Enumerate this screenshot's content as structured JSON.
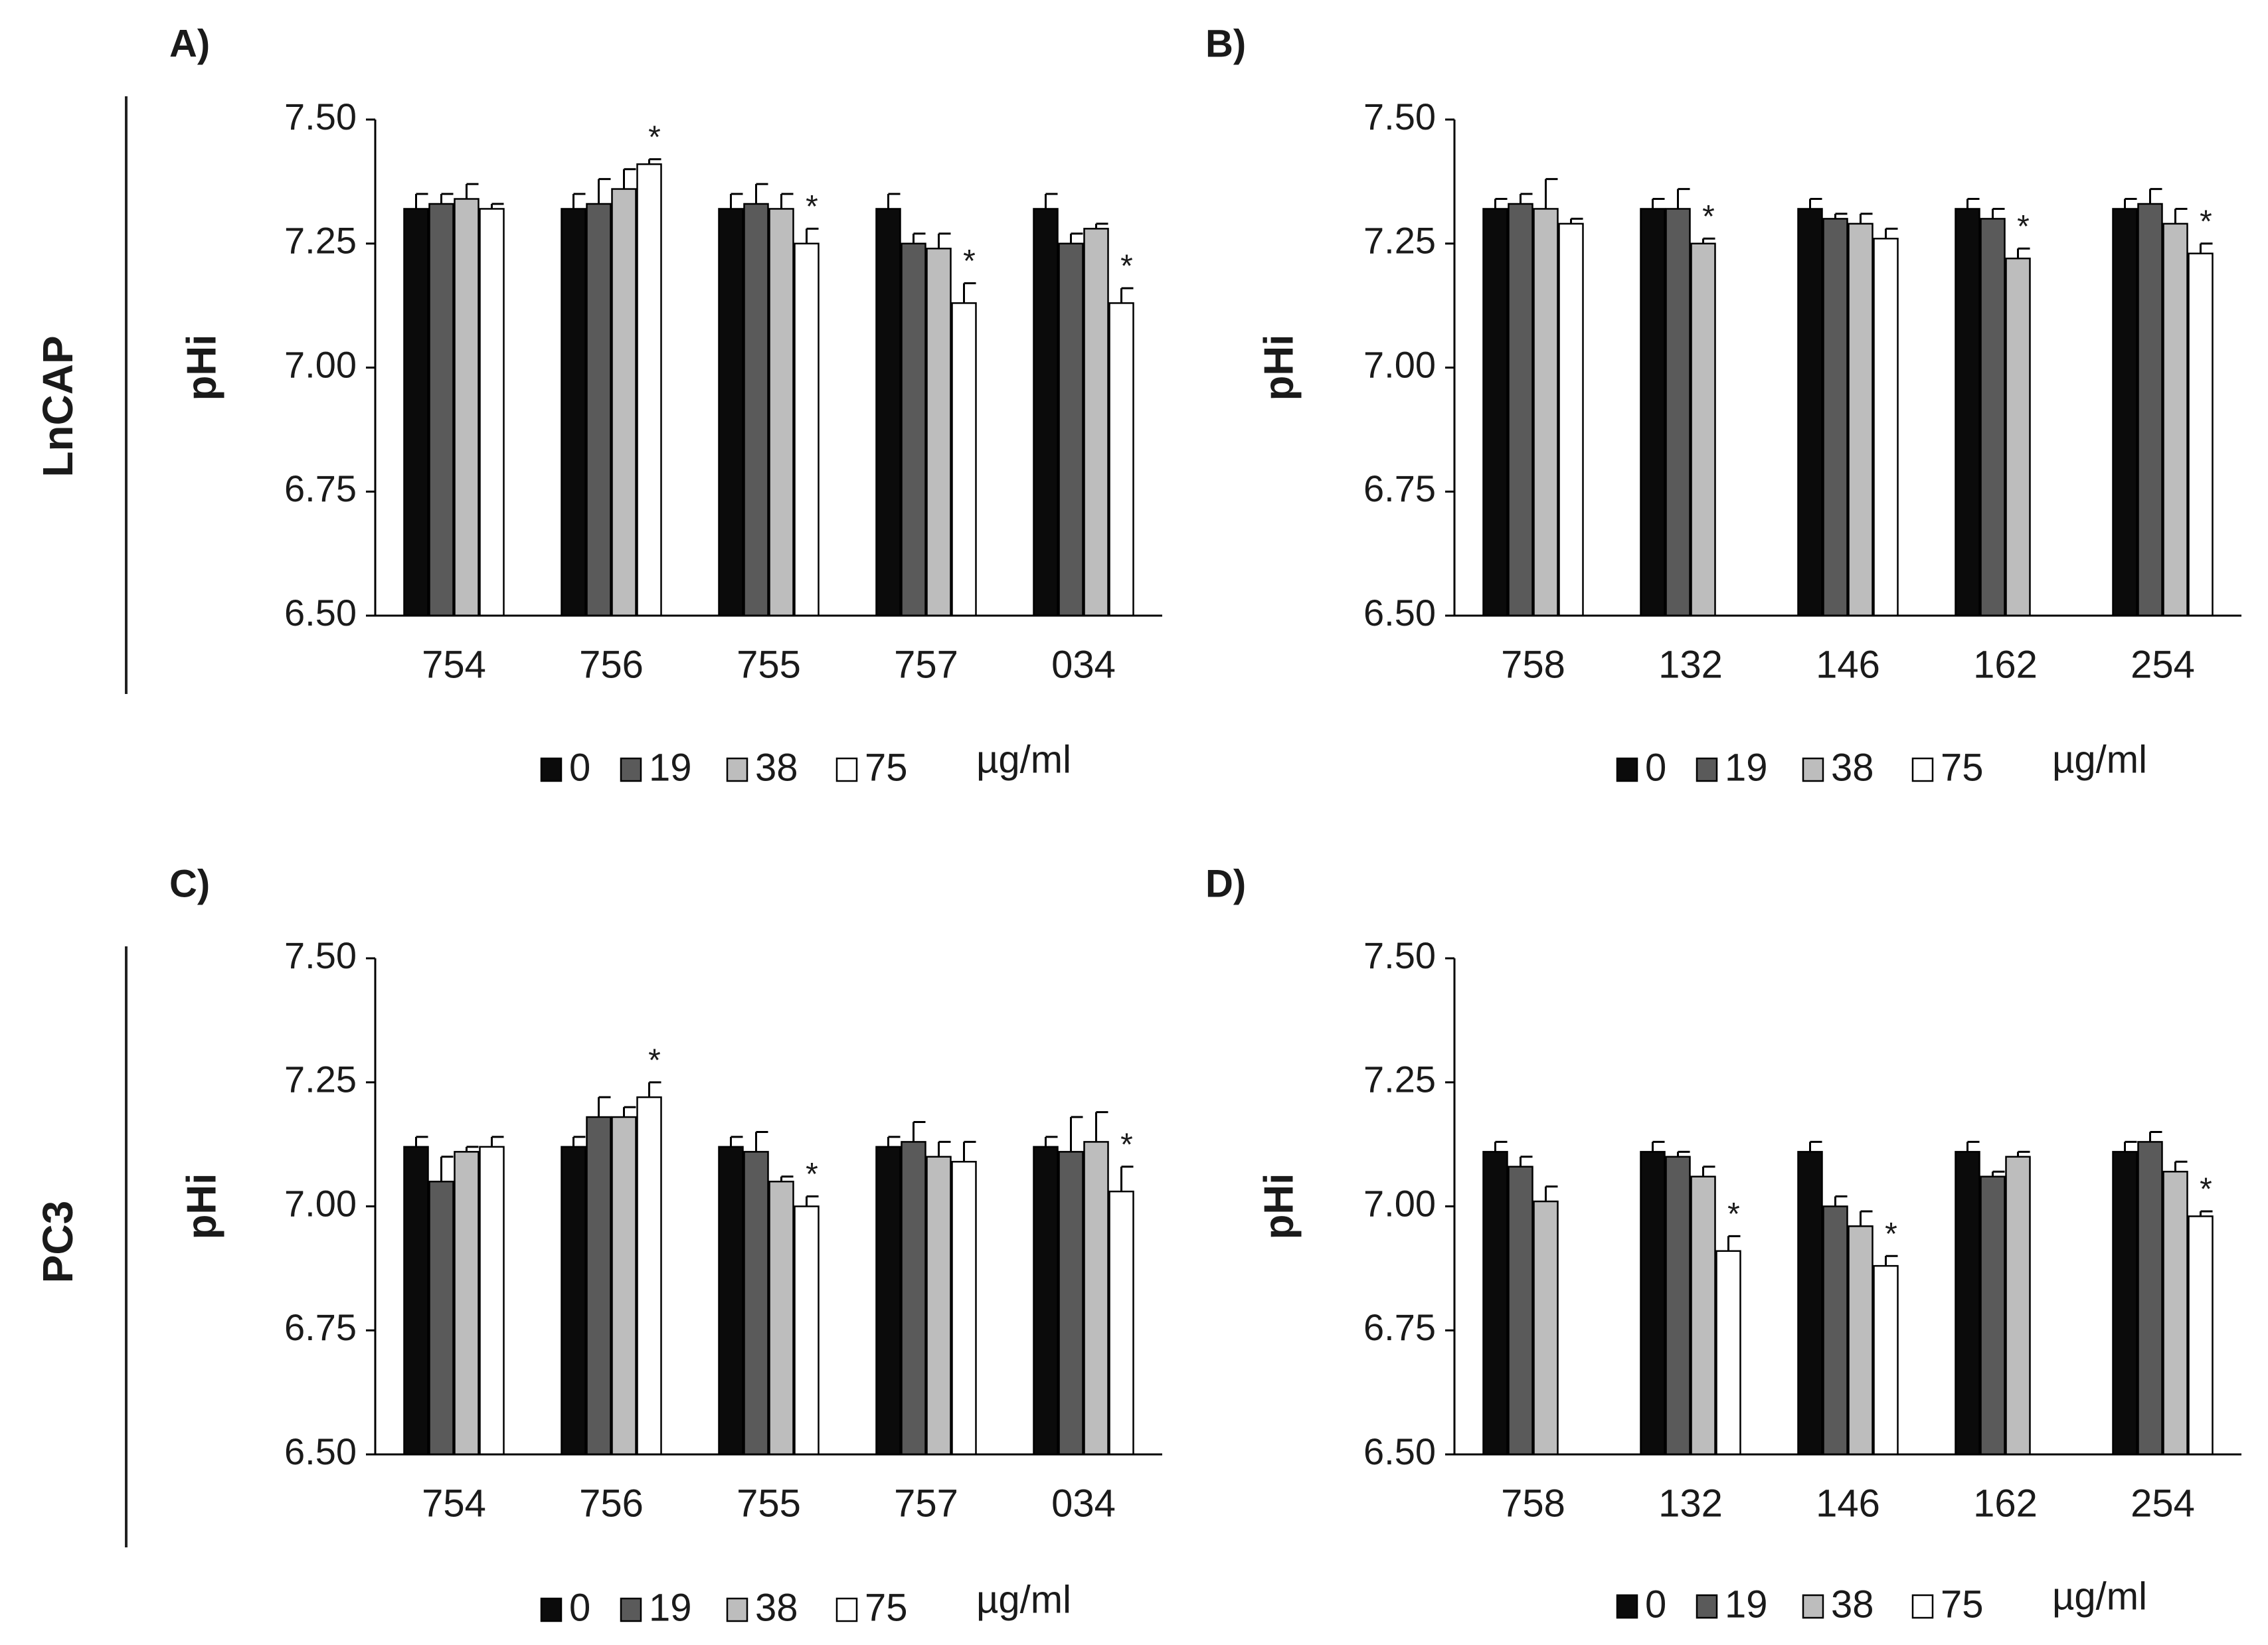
{
  "figure": {
    "row_labels": [
      "LnCAP",
      "PC3"
    ],
    "legend_labels": [
      "0",
      "19",
      "38",
      "75"
    ],
    "legend_unit": "µg/ml",
    "significance_marker": "*",
    "series_colors": [
      "#0b0b0b",
      "#5a5a5a",
      "#bdbdbd",
      "#ffffff"
    ],
    "axis_color": "#000000",
    "text_color": "#1a1a1a"
  },
  "chart_data": [
    {
      "panel": "A)",
      "type": "bar",
      "title": "",
      "xlabel": "",
      "ylabel": "pHi",
      "ylim": [
        6.5,
        7.5
      ],
      "yticks": [
        "6.50",
        "6.75",
        "7.00",
        "7.25",
        "7.50"
      ],
      "categories": [
        "754",
        "756",
        "755",
        "757",
        "034"
      ],
      "series": [
        {
          "name": "0",
          "values": [
            7.32,
            7.32,
            7.32,
            7.32,
            7.32
          ],
          "errors": [
            0.03,
            0.03,
            0.03,
            0.03,
            0.03
          ],
          "significant": [
            false,
            false,
            false,
            false,
            false
          ]
        },
        {
          "name": "19",
          "values": [
            7.33,
            7.33,
            7.33,
            7.25,
            7.25
          ],
          "errors": [
            0.02,
            0.05,
            0.04,
            0.02,
            0.02
          ],
          "significant": [
            false,
            false,
            false,
            false,
            false
          ]
        },
        {
          "name": "38",
          "values": [
            7.34,
            7.36,
            7.32,
            7.24,
            7.28
          ],
          "errors": [
            0.03,
            0.04,
            0.03,
            0.03,
            0.01
          ],
          "significant": [
            false,
            false,
            false,
            false,
            false
          ]
        },
        {
          "name": "75",
          "values": [
            7.32,
            7.41,
            7.25,
            7.13,
            7.13
          ],
          "errors": [
            0.01,
            0.01,
            0.03,
            0.04,
            0.03
          ],
          "significant": [
            false,
            true,
            true,
            true,
            true
          ]
        }
      ]
    },
    {
      "panel": "B)",
      "type": "bar",
      "title": "",
      "xlabel": "",
      "ylabel": "pHi",
      "ylim": [
        6.5,
        7.5
      ],
      "yticks": [
        "6.50",
        "6.75",
        "7.00",
        "7.25",
        "7.50"
      ],
      "categories": [
        "758",
        "132",
        "146",
        "162",
        "254"
      ],
      "series": [
        {
          "name": "0",
          "values": [
            7.32,
            7.32,
            7.32,
            7.32,
            7.32
          ],
          "errors": [
            0.02,
            0.02,
            0.02,
            0.02,
            0.02
          ],
          "significant": [
            false,
            false,
            false,
            false,
            false
          ]
        },
        {
          "name": "19",
          "values": [
            7.33,
            7.32,
            7.3,
            7.3,
            7.33
          ],
          "errors": [
            0.02,
            0.04,
            0.01,
            0.02,
            0.03
          ],
          "significant": [
            false,
            false,
            false,
            false,
            false
          ]
        },
        {
          "name": "38",
          "values": [
            7.32,
            7.25,
            7.29,
            7.22,
            7.29
          ],
          "errors": [
            0.06,
            0.01,
            0.02,
            0.02,
            0.03
          ],
          "significant": [
            false,
            true,
            false,
            true,
            false
          ]
        },
        {
          "name": "75",
          "values": [
            7.29,
            null,
            7.26,
            null,
            7.23
          ],
          "errors": [
            0.01,
            null,
            0.02,
            null,
            0.02
          ],
          "significant": [
            false,
            false,
            false,
            false,
            true
          ]
        }
      ]
    },
    {
      "panel": "C)",
      "type": "bar",
      "title": "",
      "xlabel": "",
      "ylabel": "pHi",
      "ylim": [
        6.5,
        7.5
      ],
      "yticks": [
        "6.50",
        "6.75",
        "7.00",
        "7.25",
        "7.50"
      ],
      "categories": [
        "754",
        "756",
        "755",
        "757",
        "034"
      ],
      "series": [
        {
          "name": "0",
          "values": [
            7.12,
            7.12,
            7.12,
            7.12,
            7.12
          ],
          "errors": [
            0.02,
            0.02,
            0.02,
            0.02,
            0.02
          ],
          "significant": [
            false,
            false,
            false,
            false,
            false
          ]
        },
        {
          "name": "19",
          "values": [
            7.05,
            7.18,
            7.11,
            7.13,
            7.11
          ],
          "errors": [
            0.05,
            0.04,
            0.04,
            0.04,
            0.07
          ],
          "significant": [
            false,
            false,
            false,
            false,
            false
          ]
        },
        {
          "name": "38",
          "values": [
            7.11,
            7.18,
            7.05,
            7.1,
            7.13
          ],
          "errors": [
            0.01,
            0.02,
            0.01,
            0.03,
            0.06
          ],
          "significant": [
            false,
            false,
            false,
            false,
            false
          ]
        },
        {
          "name": "75",
          "values": [
            7.12,
            7.22,
            7.0,
            7.09,
            7.03
          ],
          "errors": [
            0.02,
            0.03,
            0.02,
            0.04,
            0.05
          ],
          "significant": [
            false,
            true,
            true,
            false,
            true
          ]
        }
      ]
    },
    {
      "panel": "D)",
      "type": "bar",
      "title": "",
      "xlabel": "",
      "ylabel": "pHi",
      "ylim": [
        6.5,
        7.5
      ],
      "yticks": [
        "6.50",
        "6.75",
        "7.00",
        "7.25",
        "7.50"
      ],
      "categories": [
        "758",
        "132",
        "146",
        "162",
        "254"
      ],
      "series": [
        {
          "name": "0",
          "values": [
            7.11,
            7.11,
            7.11,
            7.11,
            7.11
          ],
          "errors": [
            0.02,
            0.02,
            0.02,
            0.02,
            0.02
          ],
          "significant": [
            false,
            false,
            false,
            false,
            false
          ]
        },
        {
          "name": "19",
          "values": [
            7.08,
            7.1,
            7.0,
            7.06,
            7.13
          ],
          "errors": [
            0.02,
            0.01,
            0.02,
            0.01,
            0.02
          ],
          "significant": [
            false,
            false,
            false,
            false,
            false
          ]
        },
        {
          "name": "38",
          "values": [
            7.01,
            7.06,
            6.96,
            7.1,
            7.07
          ],
          "errors": [
            0.03,
            0.02,
            0.03,
            0.01,
            0.02
          ],
          "significant": [
            false,
            false,
            false,
            false,
            false
          ]
        },
        {
          "name": "75",
          "values": [
            null,
            6.91,
            6.88,
            null,
            6.98
          ],
          "errors": [
            null,
            0.03,
            0.02,
            null,
            0.01
          ],
          "significant": [
            false,
            true,
            true,
            false,
            true
          ]
        }
      ]
    }
  ]
}
